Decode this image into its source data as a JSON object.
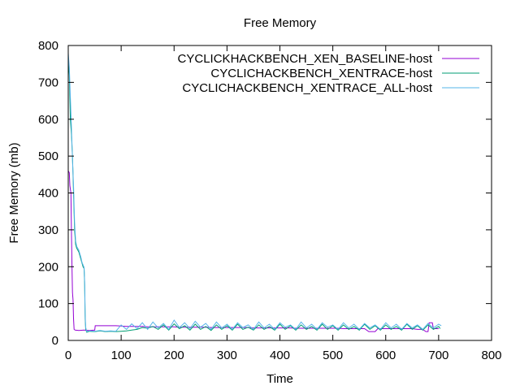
{
  "chart_data": {
    "type": "line",
    "title": "Free Memory",
    "xlabel": "Time",
    "ylabel": "Free Memory (mb)",
    "xlim": [
      0,
      800
    ],
    "ylim": [
      0,
      800
    ],
    "x_ticks": [
      0,
      100,
      200,
      300,
      400,
      500,
      600,
      700,
      800
    ],
    "y_ticks": [
      0,
      100,
      200,
      300,
      400,
      500,
      600,
      700,
      800
    ],
    "grid": false,
    "legend_position": "top-right",
    "series": [
      {
        "name": "CYCLICKHACKBENCH_XEN_BASELINE-host",
        "color": "#9400d3",
        "points": [
          [
            0,
            460
          ],
          [
            2,
            455
          ],
          [
            3,
            420
          ],
          [
            5,
            400
          ],
          [
            6,
            300
          ],
          [
            7,
            200
          ],
          [
            8,
            130
          ],
          [
            9,
            110
          ],
          [
            10,
            60
          ],
          [
            11,
            30
          ],
          [
            13,
            28
          ],
          [
            20,
            27
          ],
          [
            30,
            28
          ],
          [
            40,
            27
          ],
          [
            50,
            28
          ],
          [
            51,
            40
          ],
          [
            60,
            40
          ],
          [
            70,
            40
          ],
          [
            80,
            40
          ],
          [
            90,
            40
          ],
          [
            100,
            39
          ],
          [
            110,
            38
          ],
          [
            120,
            38
          ],
          [
            130,
            38
          ],
          [
            140,
            38
          ],
          [
            150,
            37
          ],
          [
            160,
            37
          ],
          [
            170,
            37
          ],
          [
            180,
            37
          ],
          [
            190,
            37
          ],
          [
            200,
            37
          ],
          [
            210,
            36
          ],
          [
            220,
            36
          ],
          [
            230,
            36
          ],
          [
            240,
            36
          ],
          [
            250,
            36
          ],
          [
            260,
            36
          ],
          [
            270,
            35
          ],
          [
            280,
            35
          ],
          [
            290,
            35
          ],
          [
            300,
            35
          ],
          [
            310,
            35
          ],
          [
            320,
            35
          ],
          [
            330,
            35
          ],
          [
            340,
            35
          ],
          [
            350,
            34
          ],
          [
            360,
            34
          ],
          [
            370,
            34
          ],
          [
            380,
            34
          ],
          [
            390,
            34
          ],
          [
            400,
            34
          ],
          [
            410,
            34
          ],
          [
            420,
            34
          ],
          [
            430,
            33
          ],
          [
            440,
            33
          ],
          [
            450,
            33
          ],
          [
            460,
            33
          ],
          [
            470,
            33
          ],
          [
            480,
            33
          ],
          [
            490,
            33
          ],
          [
            500,
            33
          ],
          [
            510,
            33
          ],
          [
            520,
            32
          ],
          [
            530,
            32
          ],
          [
            540,
            32
          ],
          [
            550,
            32
          ],
          [
            560,
            32
          ],
          [
            568,
            24
          ],
          [
            580,
            24
          ],
          [
            585,
            32
          ],
          [
            600,
            32
          ],
          [
            610,
            32
          ],
          [
            620,
            32
          ],
          [
            630,
            32
          ],
          [
            640,
            32
          ],
          [
            650,
            32
          ],
          [
            660,
            30
          ],
          [
            670,
            30
          ],
          [
            676,
            24
          ],
          [
            680,
            24
          ],
          [
            682,
            48
          ],
          [
            688,
            48
          ],
          [
            690,
            32
          ],
          [
            700,
            32
          ]
        ]
      },
      {
        "name": "CYCLICHACKBENCH_XENTRACE-host",
        "color": "#009e73",
        "points": [
          [
            0,
            760
          ],
          [
            2,
            720
          ],
          [
            4,
            600
          ],
          [
            6,
            560
          ],
          [
            8,
            500
          ],
          [
            10,
            400
          ],
          [
            12,
            300
          ],
          [
            14,
            260
          ],
          [
            16,
            250
          ],
          [
            18,
            245
          ],
          [
            20,
            240
          ],
          [
            22,
            230
          ],
          [
            24,
            220
          ],
          [
            26,
            210
          ],
          [
            28,
            200
          ],
          [
            30,
            195
          ],
          [
            31,
            150
          ],
          [
            32,
            60
          ],
          [
            33,
            30
          ],
          [
            35,
            22
          ],
          [
            40,
            25
          ],
          [
            50,
            24
          ],
          [
            60,
            26
          ],
          [
            70,
            24
          ],
          [
            80,
            25
          ],
          [
            90,
            24
          ],
          [
            100,
            25
          ],
          [
            110,
            26
          ],
          [
            120,
            28
          ],
          [
            130,
            30
          ],
          [
            140,
            35
          ],
          [
            150,
            33
          ],
          [
            160,
            38
          ],
          [
            170,
            30
          ],
          [
            180,
            42
          ],
          [
            190,
            28
          ],
          [
            200,
            45
          ],
          [
            210,
            32
          ],
          [
            220,
            40
          ],
          [
            230,
            28
          ],
          [
            240,
            44
          ],
          [
            250,
            30
          ],
          [
            260,
            38
          ],
          [
            270,
            27
          ],
          [
            280,
            42
          ],
          [
            290,
            30
          ],
          [
            300,
            40
          ],
          [
            310,
            28
          ],
          [
            320,
            44
          ],
          [
            330,
            30
          ],
          [
            340,
            36
          ],
          [
            350,
            28
          ],
          [
            360,
            42
          ],
          [
            370,
            30
          ],
          [
            380,
            38
          ],
          [
            390,
            28
          ],
          [
            400,
            44
          ],
          [
            410,
            30
          ],
          [
            420,
            40
          ],
          [
            430,
            28
          ],
          [
            440,
            42
          ],
          [
            450,
            30
          ],
          [
            460,
            38
          ],
          [
            470,
            28
          ],
          [
            480,
            44
          ],
          [
            490,
            30
          ],
          [
            500,
            40
          ],
          [
            510,
            28
          ],
          [
            520,
            42
          ],
          [
            530,
            30
          ],
          [
            540,
            38
          ],
          [
            550,
            28
          ],
          [
            560,
            44
          ],
          [
            570,
            30
          ],
          [
            580,
            40
          ],
          [
            590,
            28
          ],
          [
            600,
            42
          ],
          [
            610,
            30
          ],
          [
            620,
            38
          ],
          [
            630,
            28
          ],
          [
            640,
            44
          ],
          [
            650,
            30
          ],
          [
            660,
            40
          ],
          [
            670,
            28
          ],
          [
            680,
            42
          ],
          [
            690,
            30
          ],
          [
            700,
            38
          ],
          [
            703,
            32
          ]
        ]
      },
      {
        "name": "CYCLICHACKBENCH_XENTRACE_ALL-host",
        "color": "#56b4e9",
        "points": [
          [
            0,
            780
          ],
          [
            2,
            740
          ],
          [
            4,
            660
          ],
          [
            6,
            580
          ],
          [
            8,
            490
          ],
          [
            10,
            420
          ],
          [
            12,
            320
          ],
          [
            14,
            270
          ],
          [
            16,
            255
          ],
          [
            18,
            250
          ],
          [
            20,
            245
          ],
          [
            22,
            235
          ],
          [
            24,
            225
          ],
          [
            26,
            212
          ],
          [
            28,
            205
          ],
          [
            30,
            198
          ],
          [
            31,
            160
          ],
          [
            32,
            70
          ],
          [
            33,
            35
          ],
          [
            35,
            24
          ],
          [
            40,
            26
          ],
          [
            50,
            25
          ],
          [
            60,
            27
          ],
          [
            70,
            25
          ],
          [
            80,
            26
          ],
          [
            90,
            25
          ],
          [
            100,
            42
          ],
          [
            110,
            30
          ],
          [
            120,
            45
          ],
          [
            130,
            32
          ],
          [
            140,
            48
          ],
          [
            150,
            30
          ],
          [
            160,
            50
          ],
          [
            170,
            34
          ],
          [
            180,
            46
          ],
          [
            190,
            30
          ],
          [
            200,
            55
          ],
          [
            210,
            35
          ],
          [
            220,
            48
          ],
          [
            230,
            32
          ],
          [
            240,
            52
          ],
          [
            250,
            36
          ],
          [
            260,
            46
          ],
          [
            270,
            30
          ],
          [
            280,
            50
          ],
          [
            290,
            34
          ],
          [
            300,
            44
          ],
          [
            310,
            30
          ],
          [
            320,
            48
          ],
          [
            330,
            35
          ],
          [
            340,
            42
          ],
          [
            350,
            30
          ],
          [
            360,
            50
          ],
          [
            370,
            34
          ],
          [
            380,
            44
          ],
          [
            390,
            30
          ],
          [
            400,
            48
          ],
          [
            410,
            36
          ],
          [
            420,
            42
          ],
          [
            430,
            30
          ],
          [
            440,
            50
          ],
          [
            450,
            34
          ],
          [
            460,
            44
          ],
          [
            470,
            30
          ],
          [
            480,
            48
          ],
          [
            490,
            36
          ],
          [
            500,
            42
          ],
          [
            510,
            30
          ],
          [
            520,
            48
          ],
          [
            530,
            34
          ],
          [
            540,
            44
          ],
          [
            550,
            30
          ],
          [
            560,
            46
          ],
          [
            570,
            34
          ],
          [
            580,
            42
          ],
          [
            590,
            30
          ],
          [
            600,
            48
          ],
          [
            610,
            34
          ],
          [
            620,
            44
          ],
          [
            630,
            30
          ],
          [
            640,
            46
          ],
          [
            650,
            34
          ],
          [
            660,
            42
          ],
          [
            670,
            30
          ],
          [
            680,
            46
          ],
          [
            690,
            34
          ],
          [
            700,
            44
          ],
          [
            705,
            40
          ]
        ]
      }
    ]
  }
}
